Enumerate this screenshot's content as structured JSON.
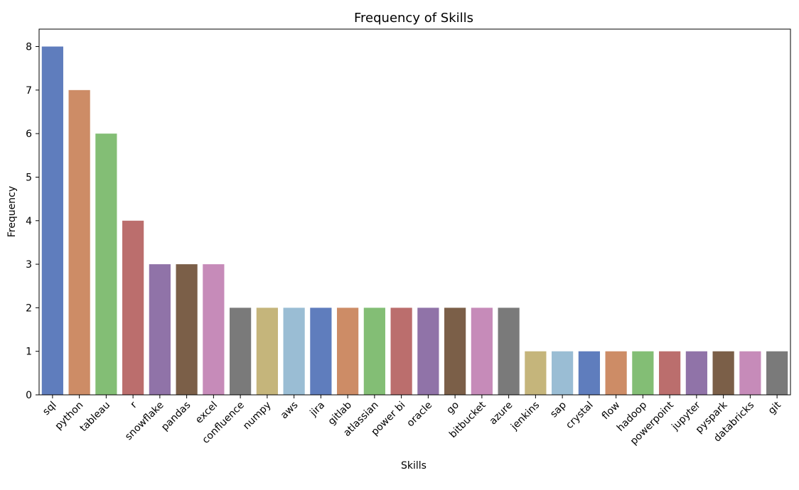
{
  "chart_data": {
    "type": "bar",
    "title": "Frequency of Skills",
    "xlabel": "Skills",
    "ylabel": "Frequency",
    "ylim": [
      0,
      8.4
    ],
    "yticks": [
      0,
      1,
      2,
      3,
      4,
      5,
      6,
      7,
      8
    ],
    "grid": false,
    "categories": [
      "sql",
      "python",
      "tableau",
      "r",
      "snowflake",
      "pandas",
      "excel",
      "confluence",
      "numpy",
      "aws",
      "jira",
      "gitlab",
      "atlassian",
      "power bi",
      "oracle",
      "go",
      "bitbucket",
      "azure",
      "jenkins",
      "sap",
      "crystal",
      "flow",
      "hadoop",
      "powerpoint",
      "jupyter",
      "pyspark",
      "databricks",
      "git"
    ],
    "values": [
      8,
      7,
      6,
      4,
      3,
      3,
      3,
      2,
      2,
      2,
      2,
      2,
      2,
      2,
      2,
      2,
      2,
      2,
      1,
      1,
      1,
      1,
      1,
      1,
      1,
      1,
      1,
      1
    ],
    "palette": [
      "#5f7dbd",
      "#cd8c66",
      "#83be75",
      "#bb6e6d",
      "#9073a8",
      "#7b5f48",
      "#c68bb9",
      "#7a7a7a",
      "#c5b57b",
      "#9abdd4"
    ]
  }
}
